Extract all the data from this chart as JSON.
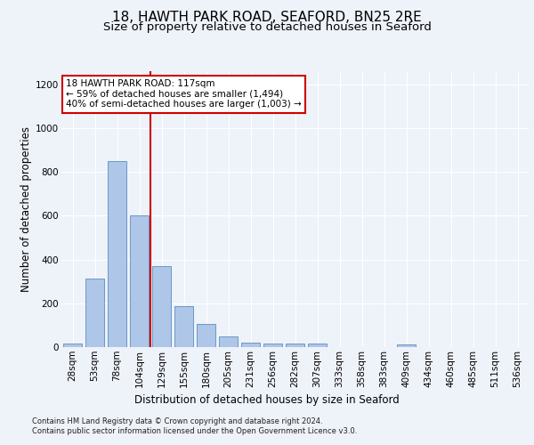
{
  "title1": "18, HAWTH PARK ROAD, SEAFORD, BN25 2RE",
  "title2": "Size of property relative to detached houses in Seaford",
  "xlabel": "Distribution of detached houses by size in Seaford",
  "ylabel": "Number of detached properties",
  "footer1": "Contains HM Land Registry data © Crown copyright and database right 2024.",
  "footer2": "Contains public sector information licensed under the Open Government Licence v3.0.",
  "bar_categories": [
    "28sqm",
    "53sqm",
    "78sqm",
    "104sqm",
    "129sqm",
    "155sqm",
    "180sqm",
    "205sqm",
    "231sqm",
    "256sqm",
    "282sqm",
    "307sqm",
    "333sqm",
    "358sqm",
    "383sqm",
    "409sqm",
    "434sqm",
    "460sqm",
    "485sqm",
    "511sqm",
    "536sqm"
  ],
  "bar_values": [
    15,
    315,
    850,
    600,
    370,
    185,
    105,
    47,
    22,
    18,
    18,
    15,
    0,
    0,
    0,
    12,
    0,
    0,
    0,
    0,
    0
  ],
  "bar_color": "#aec6e8",
  "bar_edgecolor": "#5a8fc0",
  "annotation_line1": "18 HAWTH PARK ROAD: 117sqm",
  "annotation_line2": "← 59% of detached houses are smaller (1,494)",
  "annotation_line3": "40% of semi-detached houses are larger (1,003) →",
  "vline_color": "#cc0000",
  "annotation_box_edgecolor": "#cc0000",
  "ylim": [
    0,
    1260
  ],
  "yticks": [
    0,
    200,
    400,
    600,
    800,
    1000,
    1200
  ],
  "bg_color": "#eef2f9",
  "plot_bg_color": "#eef2f9",
  "title_fontsize": 11,
  "subtitle_fontsize": 9.5,
  "axis_label_fontsize": 8.5,
  "tick_fontsize": 7.5,
  "footer_fontsize": 6,
  "annotation_fontsize": 7.5
}
